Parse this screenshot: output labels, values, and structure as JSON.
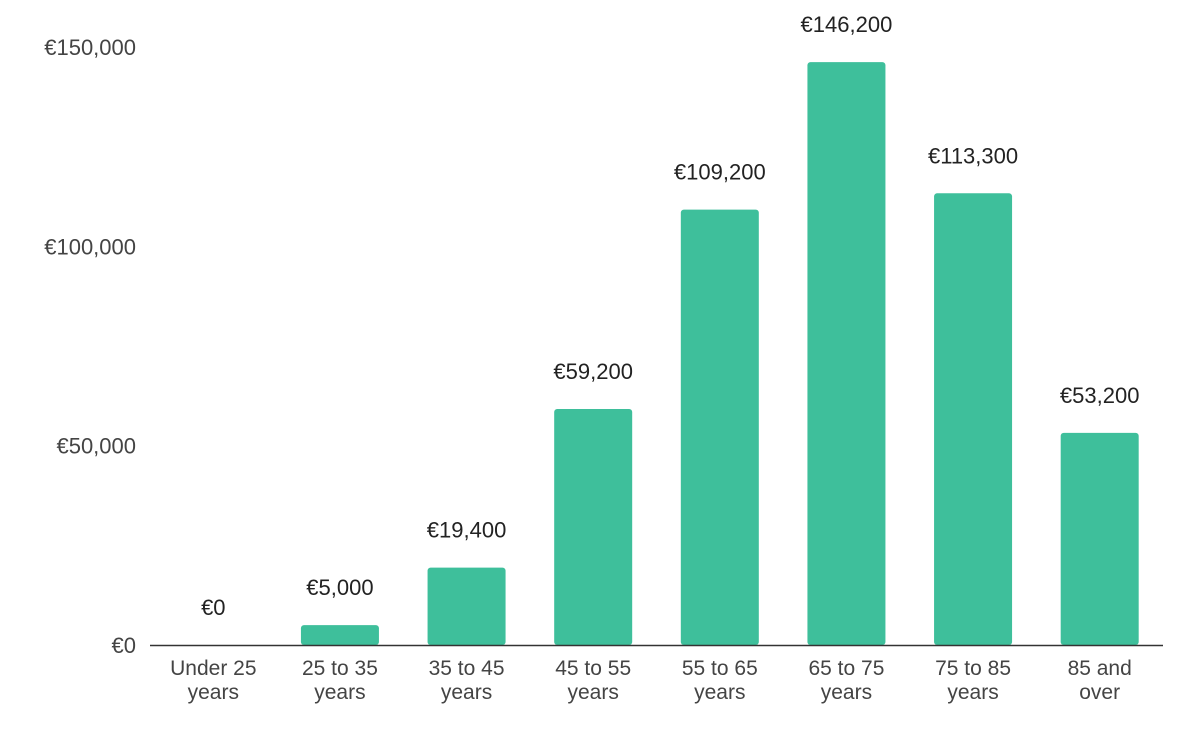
{
  "chart_data": {
    "type": "bar",
    "title": "",
    "xlabel": "",
    "ylabel": "",
    "categories": [
      [
        "Under 25",
        "years"
      ],
      [
        "25 to 35",
        "years"
      ],
      [
        "35 to 45",
        "years"
      ],
      [
        "45 to 55",
        "years"
      ],
      [
        "55 to 65",
        "years"
      ],
      [
        "65 to 75",
        "years"
      ],
      [
        "75 to 85",
        "years"
      ],
      [
        "85 and",
        "over"
      ]
    ],
    "values": [
      0,
      5000,
      19400,
      59200,
      109200,
      146200,
      113300,
      53200
    ],
    "data_labels": [
      "€0",
      "€5,000",
      "€19,400",
      "€59,200",
      "€109,200",
      "€146,200",
      "€113,300",
      "€53,200"
    ],
    "ylim": [
      0,
      150000
    ],
    "yticks": [
      0,
      50000,
      100000,
      150000
    ],
    "ytick_labels": [
      "€0",
      "€50,000",
      "€100,000",
      "€150,000"
    ],
    "grid": false,
    "legend": "none",
    "bar_color": "#3ebf9b",
    "axis_color": "#333333"
  }
}
